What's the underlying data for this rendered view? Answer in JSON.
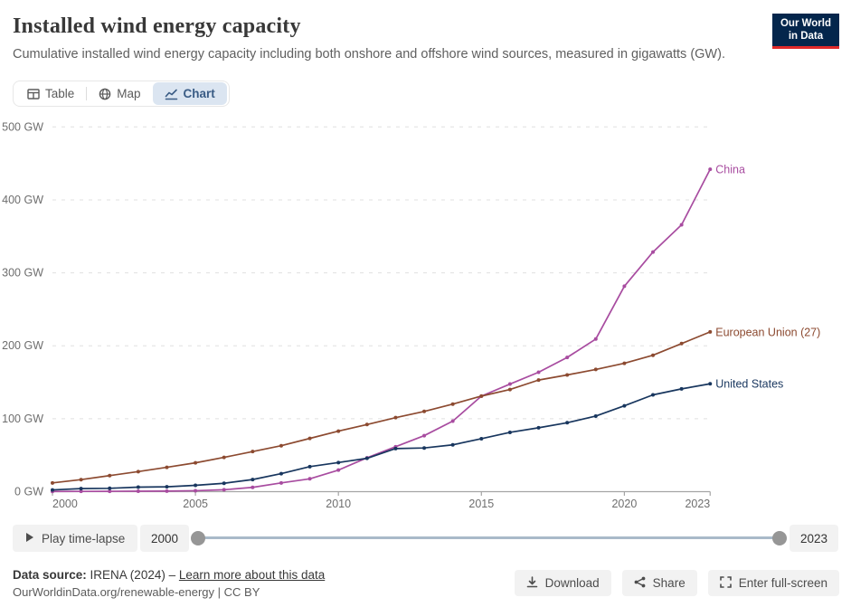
{
  "header": {
    "title": "Installed wind energy capacity",
    "subtitle": "Cumulative installed wind energy capacity including both onshore and offshore wind sources, measured in gigawatts (GW).",
    "logo_line1": "Our World",
    "logo_line2": "in Data"
  },
  "tabs": [
    {
      "label": "Table"
    },
    {
      "label": "Map"
    },
    {
      "label": "Chart"
    }
  ],
  "chart_data": {
    "type": "line",
    "title": "Installed wind energy capacity",
    "unit": "GW",
    "x": [
      2000,
      2001,
      2002,
      2003,
      2004,
      2005,
      2006,
      2007,
      2008,
      2009,
      2010,
      2011,
      2012,
      2013,
      2014,
      2015,
      2016,
      2017,
      2018,
      2019,
      2020,
      2021,
      2022,
      2023
    ],
    "series": [
      {
        "name": "China",
        "color": "#A84CA0",
        "values": [
          0.3,
          0.4,
          0.5,
          0.6,
          0.8,
          1.3,
          2.6,
          5.9,
          12.0,
          17.6,
          29.6,
          46.4,
          61.6,
          76.8,
          96.7,
          131.0,
          147.5,
          163.7,
          184.0,
          209.2,
          281.6,
          328.5,
          365.8,
          441.9
        ]
      },
      {
        "name": "European Union (27)",
        "color": "#8C4A30",
        "values": [
          12.0,
          16.5,
          22.0,
          27.5,
          33.4,
          39.5,
          47.0,
          55.0,
          63.0,
          73.0,
          83.0,
          92.0,
          101.5,
          110.0,
          120.0,
          131.0,
          140.0,
          153.0,
          160.0,
          167.5,
          176.0,
          187.0,
          203.0,
          219.0
        ]
      },
      {
        "name": "United States",
        "color": "#18365E",
        "values": [
          2.4,
          4.2,
          4.6,
          6.2,
          6.7,
          8.7,
          11.5,
          16.6,
          24.7,
          34.3,
          39.9,
          45.7,
          59.1,
          59.9,
          64.2,
          72.6,
          81.3,
          87.6,
          94.5,
          103.6,
          117.7,
          132.7,
          140.9,
          147.9
        ]
      }
    ],
    "yticks": [
      0,
      100,
      200,
      300,
      400,
      500
    ],
    "ytick_suffix": " GW",
    "xticks": [
      2000,
      2005,
      2010,
      2015,
      2020,
      2023
    ],
    "ylim": [
      0,
      500
    ],
    "xlim": [
      2000,
      2023
    ],
    "grid": "horizontal-dashed",
    "legend_position": "line-end-labels"
  },
  "controls": {
    "play_label": "Play time-lapse",
    "start_year": "2000",
    "end_year": "2023"
  },
  "footer": {
    "source_label": "Data source:",
    "source_value": "IRENA (2024)",
    "separator": "–",
    "link_label": "Learn more about this data",
    "note": "OurWorldinData.org/renewable-energy | CC BY",
    "buttons": [
      {
        "label": "Download"
      },
      {
        "label": "Share"
      },
      {
        "label": "Enter full-screen"
      }
    ]
  },
  "colors": {
    "accent_tab_bg": "#dbe5f1",
    "accent_tab_text": "#3a5c85",
    "logo_bg": "#04264c",
    "logo_underline": "#e02929",
    "grid": "#e0e0e0",
    "axis": "#a5a5a5",
    "axis_text": "#6e6e6e",
    "button_bg": "#f2f2f2",
    "slider_track": "#a9bac9",
    "slider_handle": "#969696"
  },
  "icons": {
    "tabs": [
      "table-icon",
      "globe-icon",
      "chart-icon"
    ],
    "play": "play-icon",
    "footer": [
      "download-icon",
      "share-icon",
      "fullscreen-icon"
    ]
  }
}
